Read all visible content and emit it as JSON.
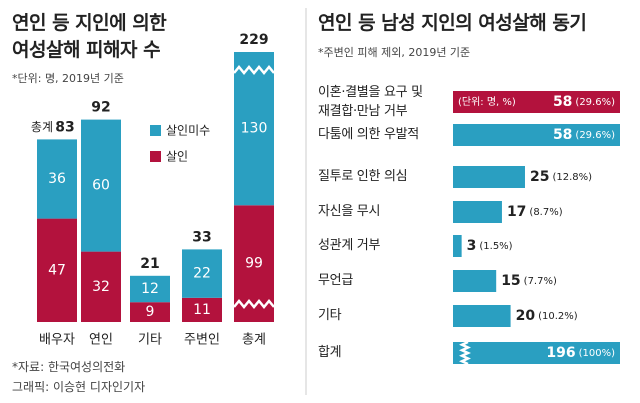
{
  "chart_data": [
    {
      "type": "stacked_bar",
      "title": "연인 등 지인에 의한\n여성살해 피해자 수",
      "subtitle": "*단위: 명, 2019년 기준",
      "categories": [
        "배우자",
        "연인",
        "기타",
        "주변인",
        "총계"
      ],
      "series": [
        {
          "name": "살인미수",
          "color": "#2a9fc1",
          "values": [
            36,
            60,
            12,
            22,
            130
          ]
        },
        {
          "name": "살인",
          "color": "#b3123d",
          "values": [
            47,
            32,
            9,
            11,
            99
          ]
        }
      ],
      "totals": [
        83,
        92,
        21,
        33,
        229
      ],
      "total_prefix": "총계",
      "broken": [
        false,
        false,
        false,
        false,
        true
      ]
    },
    {
      "type": "hbar",
      "title": "연인 등 남성 지인의 여성살해 동기",
      "subtitle": "*주변인 피해 제외, 2019년 기준",
      "categories": [
        "이혼·결별을 요구 및\n재결합·만남 거부",
        "다툼에 의한 우발적",
        "질투로 인한 의심",
        "자신을 무시",
        "성관계 거부",
        "무언급",
        "기타",
        "합계"
      ],
      "values": [
        58,
        58,
        25,
        17,
        3,
        15,
        20,
        196
      ],
      "percent_labels": [
        "(29.6%)",
        "(29.6%)",
        "(12.8%)",
        "(8.7%)",
        "(1.5%)",
        "(7.7%)",
        "(10.2%)",
        "(100%)"
      ],
      "unit_note": "(단위: 명, %)",
      "colors": [
        "#b3123d",
        "#2a9fc1",
        "#2a9fc1",
        "#2a9fc1",
        "#2a9fc1",
        "#2a9fc1",
        "#2a9fc1",
        "#2a9fc1"
      ],
      "broken": [
        false,
        false,
        false,
        false,
        false,
        false,
        false,
        true
      ]
    }
  ],
  "footer": {
    "source": "*자료: 한국여성의전화",
    "credit": "그래픽: 이승현 디자인기자"
  }
}
